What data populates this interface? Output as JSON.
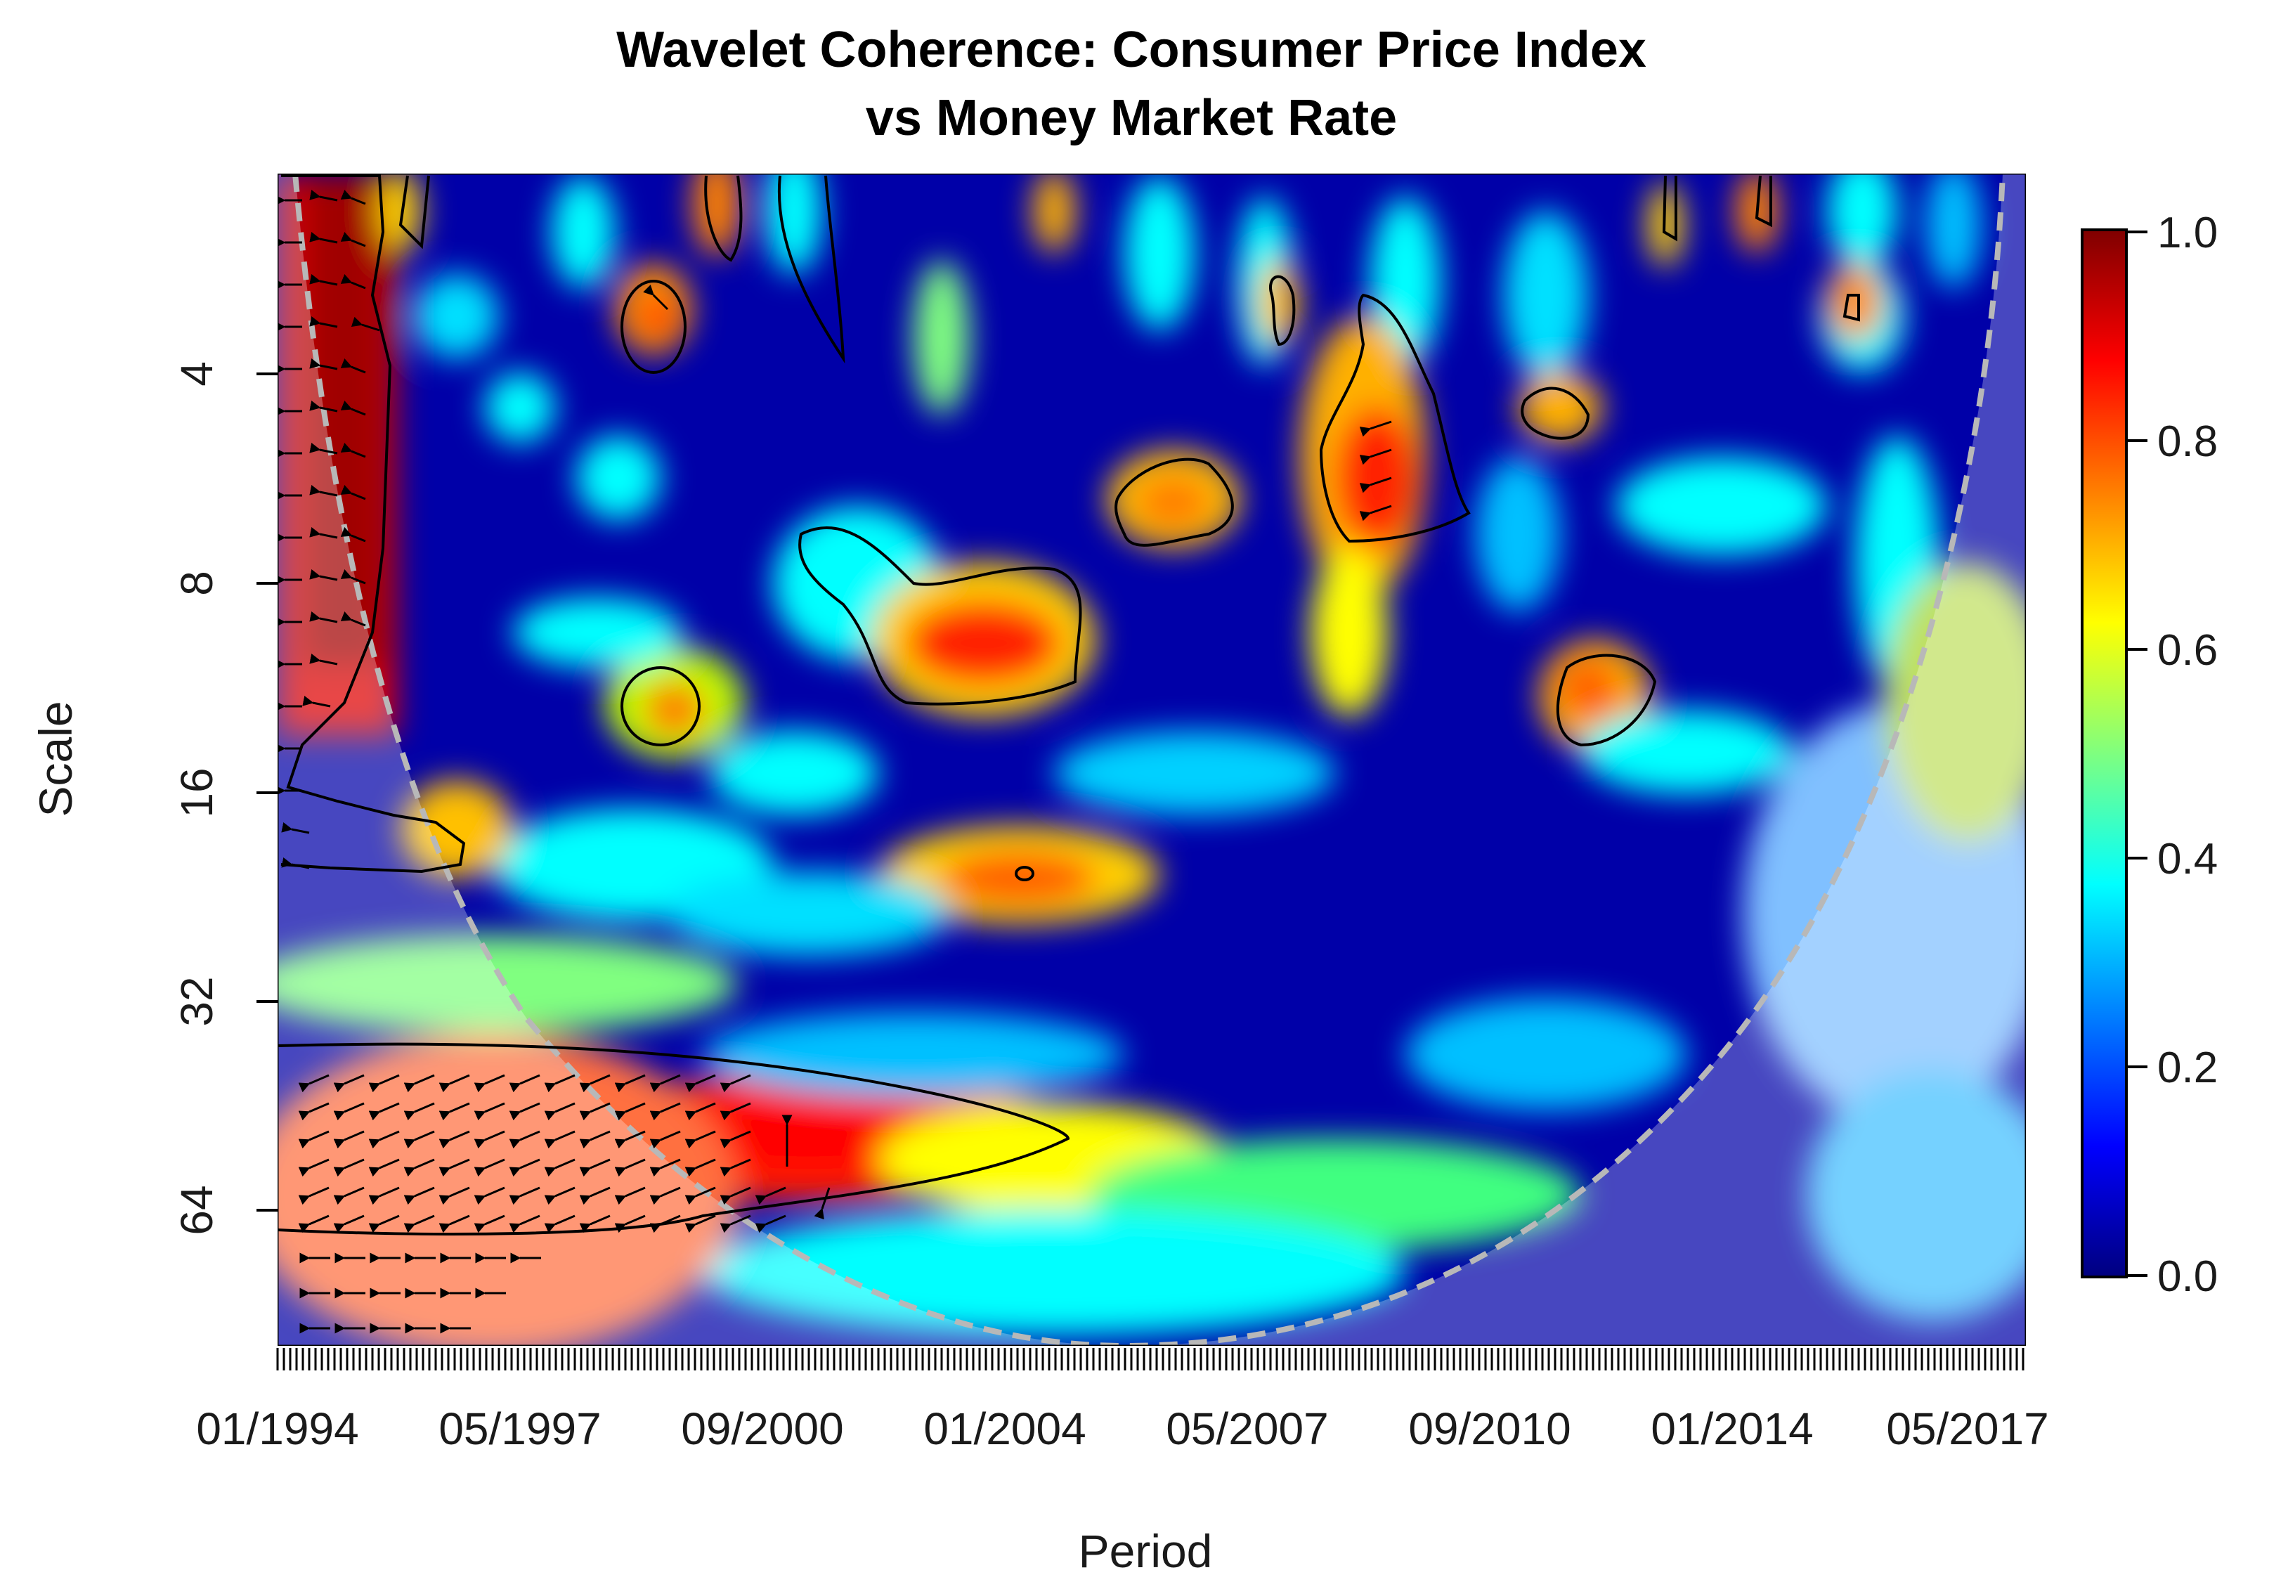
{
  "chart_data": {
    "type": "heatmap",
    "title_line1": "Wavelet Coherence: Consumer Price Index",
    "title_line2": "vs Money Market Rate",
    "xlabel": "Period",
    "ylabel": "Scale",
    "x_tick_labels": [
      "01/1994",
      "05/1997",
      "09/2000",
      "01/2004",
      "05/2007",
      "09/2010",
      "01/2014",
      "05/2017"
    ],
    "y_tick_labels": [
      "4",
      "8",
      "16",
      "32",
      "64"
    ],
    "y_scale": "log2",
    "colorbar": {
      "ticks": [
        "1.0",
        "0.8",
        "0.6",
        "0.4",
        "0.2",
        "0.0"
      ],
      "range": [
        0,
        1
      ],
      "palette": [
        "#00007f",
        "#0000ff",
        "#007fff",
        "#00ffff",
        "#7fff7f",
        "#ffff00",
        "#ff7f00",
        "#ff0000",
        "#7f0000"
      ]
    },
    "cone_of_influence": true,
    "significance_contours": true,
    "phase_arrows": true,
    "high_coherence_regions": [
      {
        "period": "01/1994-12/1995",
        "scale": "2-14",
        "coherence": 0.95
      },
      {
        "period": "01/1994-04/2001",
        "scale": "40-70",
        "coherence": 0.9
      },
      {
        "period": "06/2001-04/2004",
        "scale": "8-12",
        "coherence": 0.85
      },
      {
        "period": "03/2008-12/2009",
        "scale": "4-8",
        "coherence": 0.9
      },
      {
        "period": "10/2011-01/2013",
        "scale": "10-13",
        "coherence": 0.8
      },
      {
        "period": "12/2005-06/2007",
        "scale": "6-7",
        "coherence": 0.8
      },
      {
        "period": "06/1999-10/1999",
        "scale": "2-4",
        "coherence": 0.8
      },
      {
        "period": "06/2002-06/2004",
        "scale": "20-24",
        "coherence": 0.75
      },
      {
        "period": "09/1998-12/1999",
        "scale": "10-13",
        "coherence": 0.7
      }
    ]
  }
}
